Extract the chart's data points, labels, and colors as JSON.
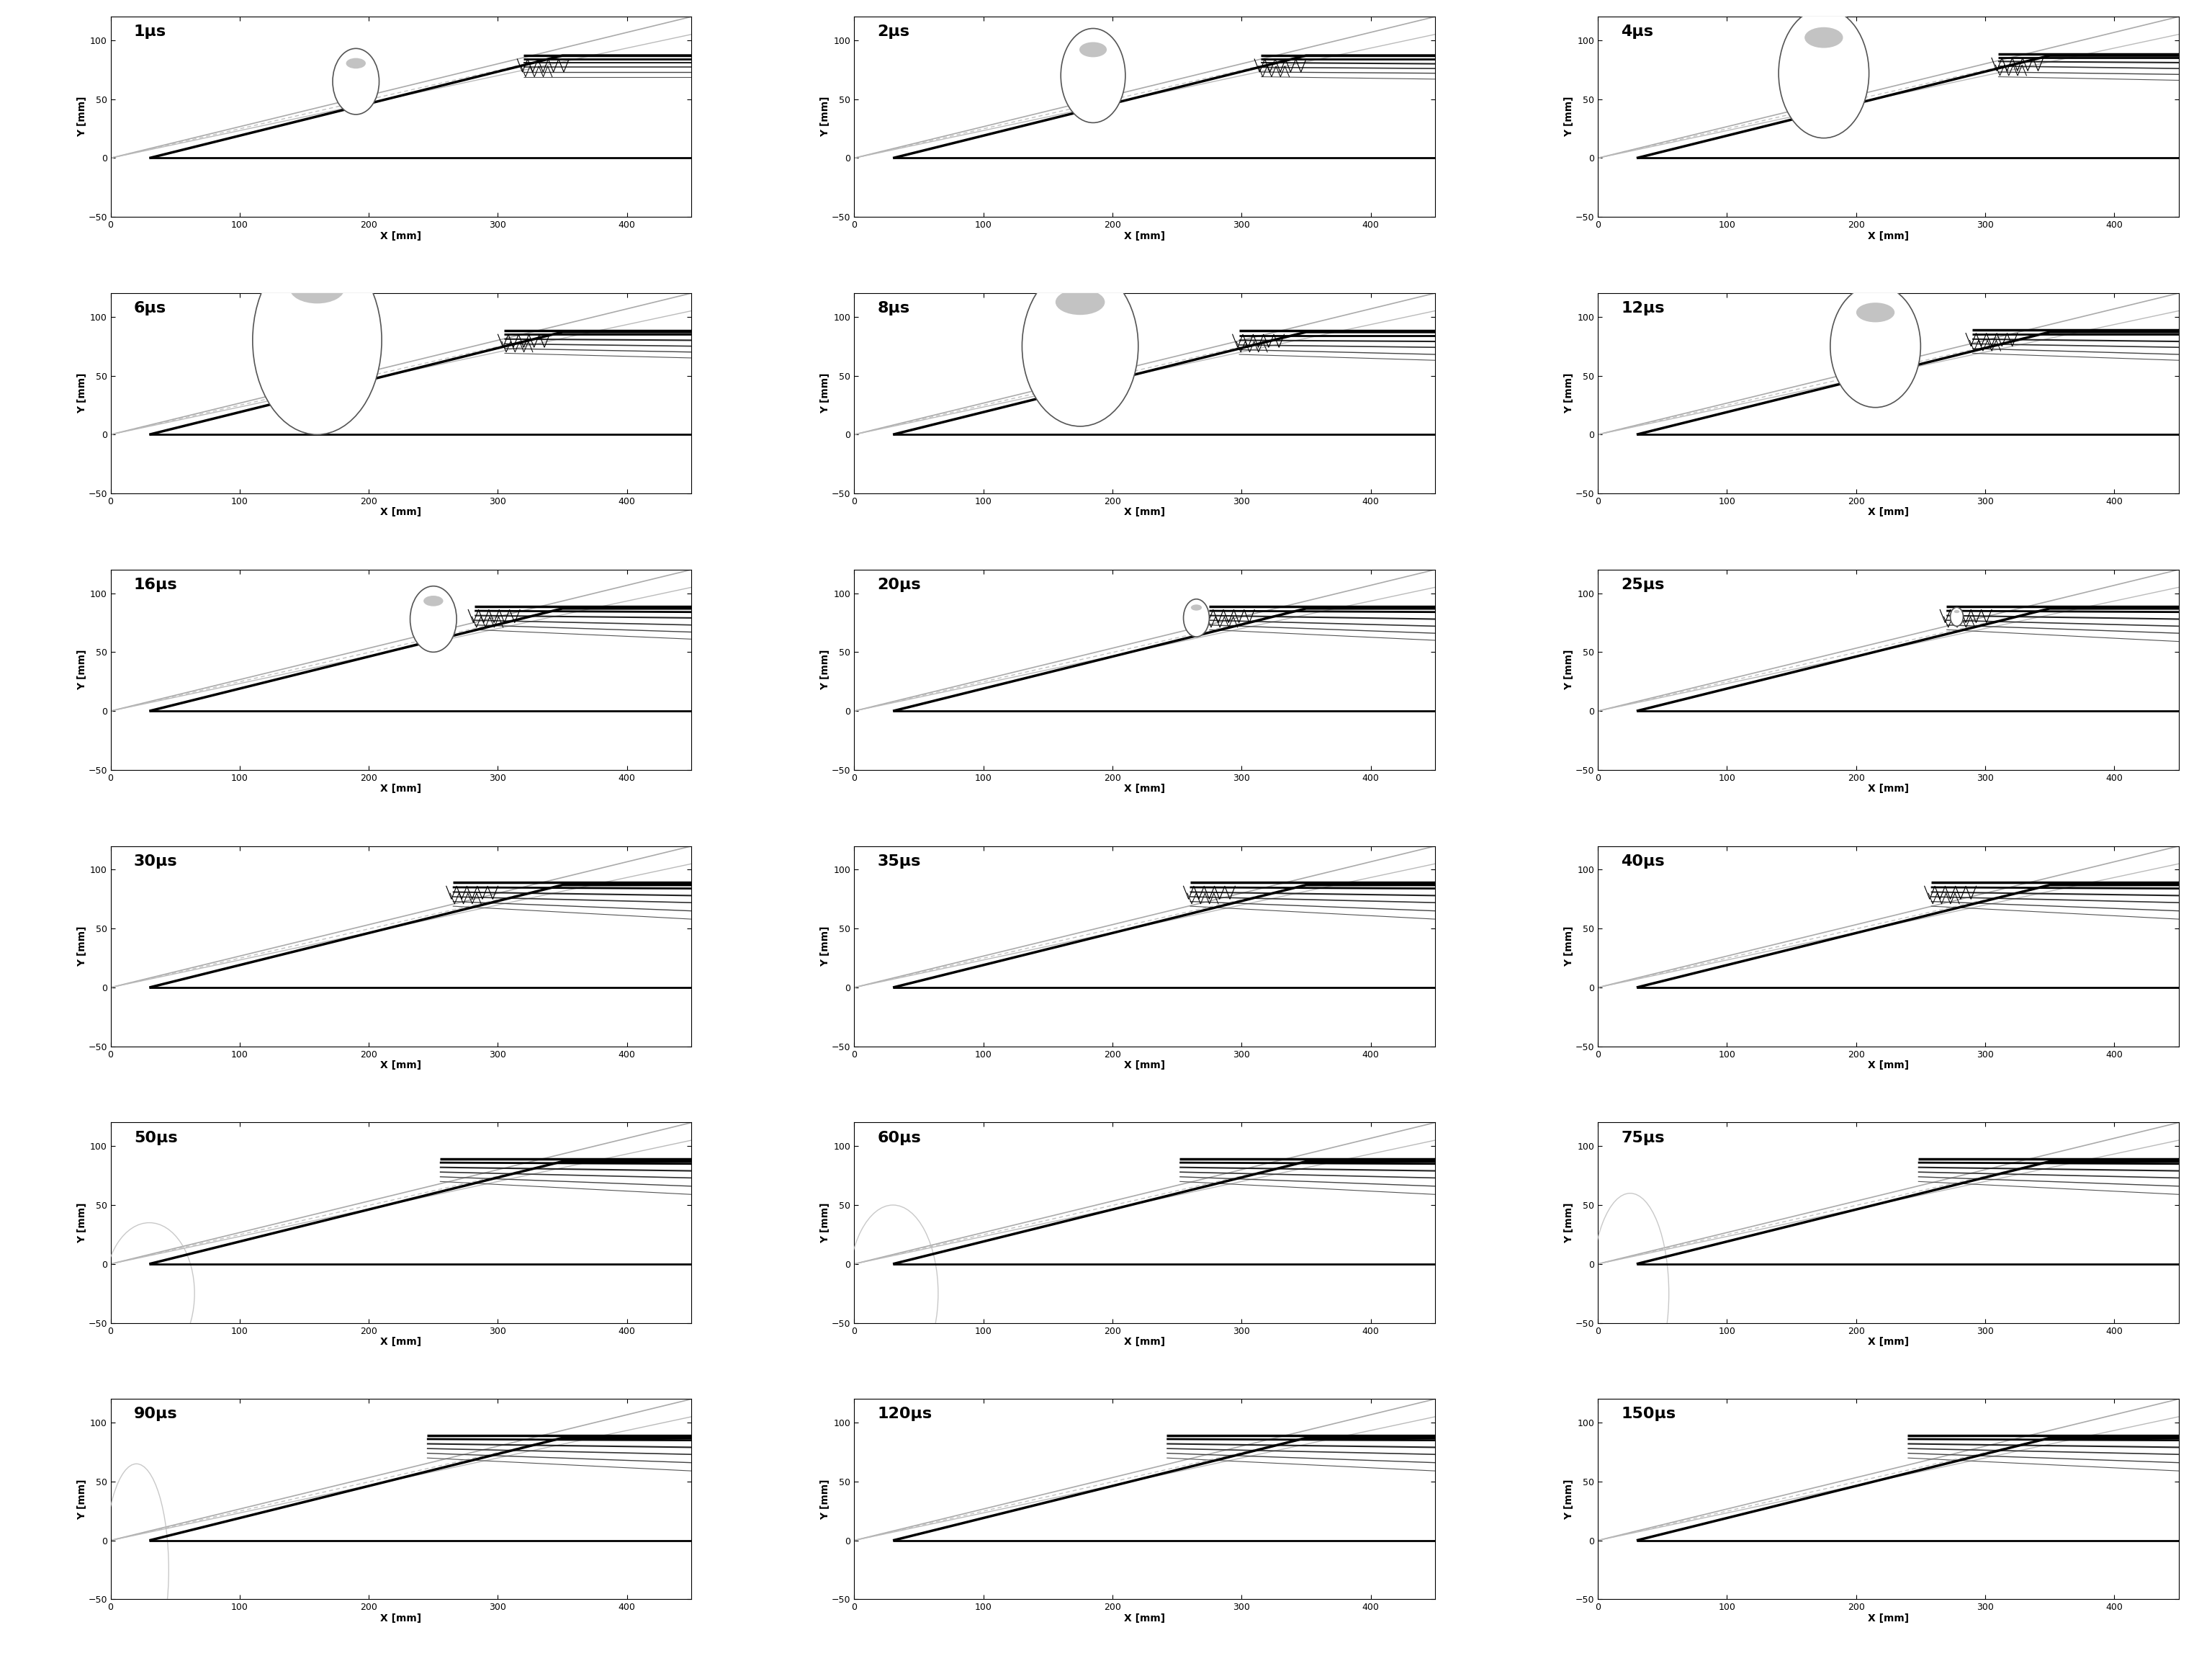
{
  "times": [
    "1μs",
    "2μs",
    "4μs",
    "6μs",
    "8μs",
    "12μs",
    "16μs",
    "20μs",
    "25μs",
    "30μs",
    "35μs",
    "40μs",
    "50μs",
    "60μs",
    "75μs",
    "90μs",
    "120μs",
    "150μs"
  ],
  "time_vals": [
    1,
    2,
    4,
    6,
    8,
    12,
    16,
    20,
    25,
    30,
    35,
    40,
    50,
    60,
    75,
    90,
    120,
    150
  ],
  "nrows": 6,
  "ncols": 3,
  "xlim": [
    0,
    450
  ],
  "ylim": [
    -50,
    120
  ],
  "wedge_tip_x": 350,
  "wedge_tip_y": 87,
  "bubble_params": {
    "1": [
      190,
      65,
      18,
      28
    ],
    "2": [
      185,
      70,
      25,
      40
    ],
    "4": [
      175,
      72,
      35,
      55
    ],
    "6": [
      160,
      80,
      50,
      80
    ],
    "8": [
      175,
      75,
      45,
      68
    ],
    "12": [
      215,
      75,
      35,
      52
    ],
    "16": [
      250,
      78,
      18,
      28
    ],
    "20": [
      265,
      79,
      10,
      16
    ],
    "25": [
      278,
      80,
      5,
      8
    ],
    "30": null,
    "35": null,
    "40": null,
    "50": null,
    "60": null,
    "75": null,
    "90": null,
    "120": null,
    "150": null
  },
  "gray_circle_params": {
    "50": [
      30,
      -25,
      35,
      60
    ],
    "60": [
      30,
      -25,
      35,
      75
    ],
    "75": [
      25,
      -25,
      30,
      85
    ],
    "90": [
      20,
      -25,
      25,
      90
    ],
    "120": null,
    "150": null
  }
}
